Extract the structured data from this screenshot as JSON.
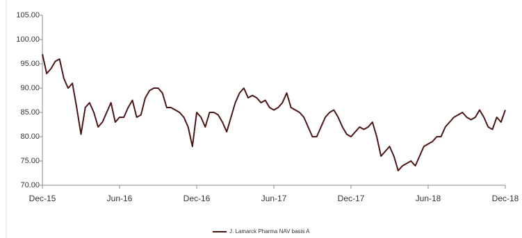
{
  "chart_data": {
    "type": "line",
    "categories": [
      "Dec-15",
      null,
      null,
      null,
      null,
      null,
      null,
      null,
      null,
      null,
      null,
      null,
      null,
      null,
      null,
      null,
      null,
      null,
      "Jun-16",
      null,
      null,
      null,
      null,
      null,
      null,
      null,
      null,
      null,
      null,
      null,
      null,
      null,
      null,
      null,
      null,
      null,
      "Dec-16",
      null,
      null,
      null,
      null,
      null,
      null,
      null,
      null,
      null,
      null,
      null,
      null,
      null,
      null,
      null,
      null,
      null,
      "Jun-17",
      null,
      null,
      null,
      null,
      null,
      null,
      null,
      null,
      null,
      null,
      null,
      null,
      null,
      null,
      null,
      null,
      null,
      "Dec-17",
      null,
      null,
      null,
      null,
      null,
      null,
      null,
      null,
      null,
      null,
      null,
      null,
      null,
      null,
      null,
      null,
      null,
      "Jun-18",
      null,
      null,
      null,
      null,
      null,
      null,
      null,
      null,
      null,
      null,
      null,
      null,
      null,
      null,
      null,
      null,
      null,
      "Dec-18"
    ],
    "series": [
      {
        "name": "J. Lamarck Pharma NAV basis A",
        "color": "#4a1414",
        "values": [
          97,
          93,
          94,
          95.5,
          96,
          92,
          90,
          91,
          86,
          80.5,
          86,
          87,
          85,
          82,
          83,
          85,
          87,
          83,
          84,
          84,
          86,
          87.5,
          84,
          84.5,
          88,
          89.5,
          90,
          90,
          89,
          86,
          86,
          85.5,
          85,
          84,
          82,
          78,
          85,
          84,
          82,
          85,
          85,
          84.5,
          83,
          81,
          84,
          87,
          89,
          90,
          88,
          88.5,
          88,
          87,
          87.5,
          86,
          85.5,
          86,
          87,
          89,
          86,
          85.5,
          85,
          84,
          82,
          80,
          80,
          82,
          84,
          85,
          85.5,
          84,
          82,
          80.5,
          80,
          81,
          82,
          81.5,
          82,
          83,
          80,
          76,
          77,
          78,
          76,
          73,
          74,
          74.5,
          75,
          74,
          76,
          78,
          78.5,
          79,
          80,
          80,
          82,
          83,
          84,
          84.5,
          85,
          84,
          83.5,
          84,
          85.5,
          84,
          82,
          81.5,
          84,
          83,
          85.5
        ]
      }
    ],
    "ylim": [
      70,
      105
    ],
    "yticks": [
      {
        "value": 70,
        "label": "70.00"
      },
      {
        "value": 75,
        "label": "75.00"
      },
      {
        "value": 80,
        "label": "80.00"
      },
      {
        "value": 85,
        "label": "85.00"
      },
      {
        "value": 90,
        "label": "90.00"
      },
      {
        "value": 95,
        "label": "95.00"
      },
      {
        "value": 100,
        "label": "100.00"
      },
      {
        "value": 105,
        "label": "105.00"
      }
    ],
    "legend": "bottom"
  }
}
